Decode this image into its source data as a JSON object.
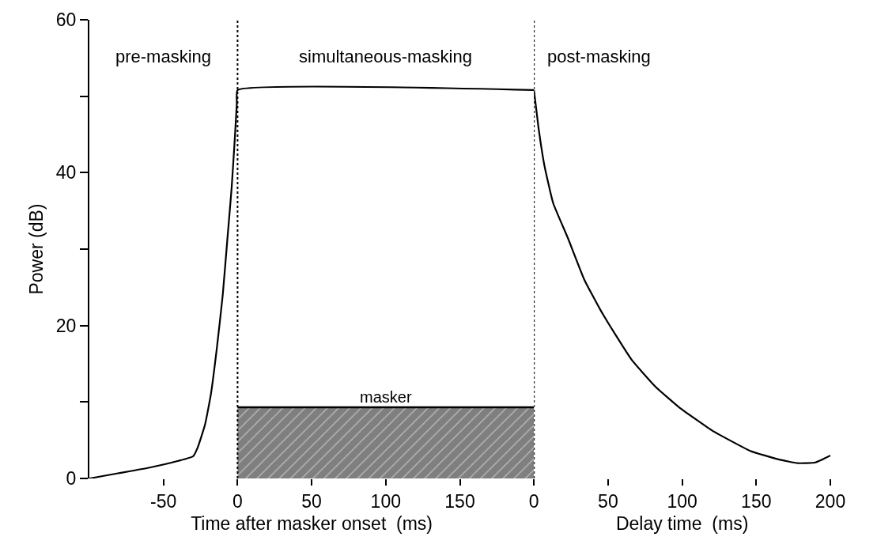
{
  "chart_data": [
    {
      "type": "line",
      "xlabel": "Time after masker onset  (ms)",
      "ylabel": "Power (dB)",
      "xlim": [
        -100,
        200
      ],
      "ylim": [
        0,
        60
      ],
      "xticks": [
        -50,
        0,
        50,
        100,
        150
      ],
      "yticks": [
        0,
        {
          "value": 10,
          "label": null
        },
        20,
        {
          "value": 30,
          "label": null
        },
        40,
        {
          "value": 50,
          "label": null
        },
        60
      ],
      "series": [
        {
          "color": "#000000",
          "x": [
            -100,
            -80,
            -60,
            -40,
            -30,
            -27,
            -22,
            -18,
            -14,
            -10,
            -7,
            -4,
            -2,
            -0.5,
            0,
            200
          ],
          "values": [
            0,
            0.7,
            1.4,
            2.3,
            2.9,
            4,
            7,
            11,
            17,
            24,
            31,
            38,
            44,
            49,
            50.8,
            50.8
          ]
        },
        {
          "type": "area",
          "name": "masker",
          "color": "#7f7f7f",
          "x": [
            0,
            200
          ],
          "values": [
            9.3,
            9.3
          ]
        }
      ],
      "ref_lines": [
        {
          "axis": "x",
          "value": 0,
          "line_style": "dotted",
          "color": "#000000"
        }
      ],
      "annotations": [
        "pre-masking",
        "simultaneous-masking"
      ]
    },
    {
      "type": "line",
      "xlabel": "Delay time  (ms)",
      "xlim": [
        0,
        200
      ],
      "ylim": [
        0,
        60
      ],
      "tick_labels": "x",
      "xticks": [
        0,
        50,
        100,
        150,
        200
      ],
      "series": [
        {
          "color": "#000000",
          "x": [
            0,
            3,
            7,
            13,
            23,
            34,
            45,
            56,
            66,
            82,
            98,
            120,
            146,
            165,
            178,
            190,
            200
          ],
          "values": [
            50.8,
            46,
            41,
            36,
            31.4,
            26,
            22,
            18.5,
            15.5,
            12,
            9.3,
            6.3,
            3.6,
            2.5,
            2,
            2.1,
            3
          ]
        }
      ],
      "ref_lines": [
        {
          "axis": "x",
          "value": 0,
          "line_style": "dotted",
          "color": "#000000"
        }
      ],
      "annotations": [
        "post-masking"
      ]
    }
  ]
}
